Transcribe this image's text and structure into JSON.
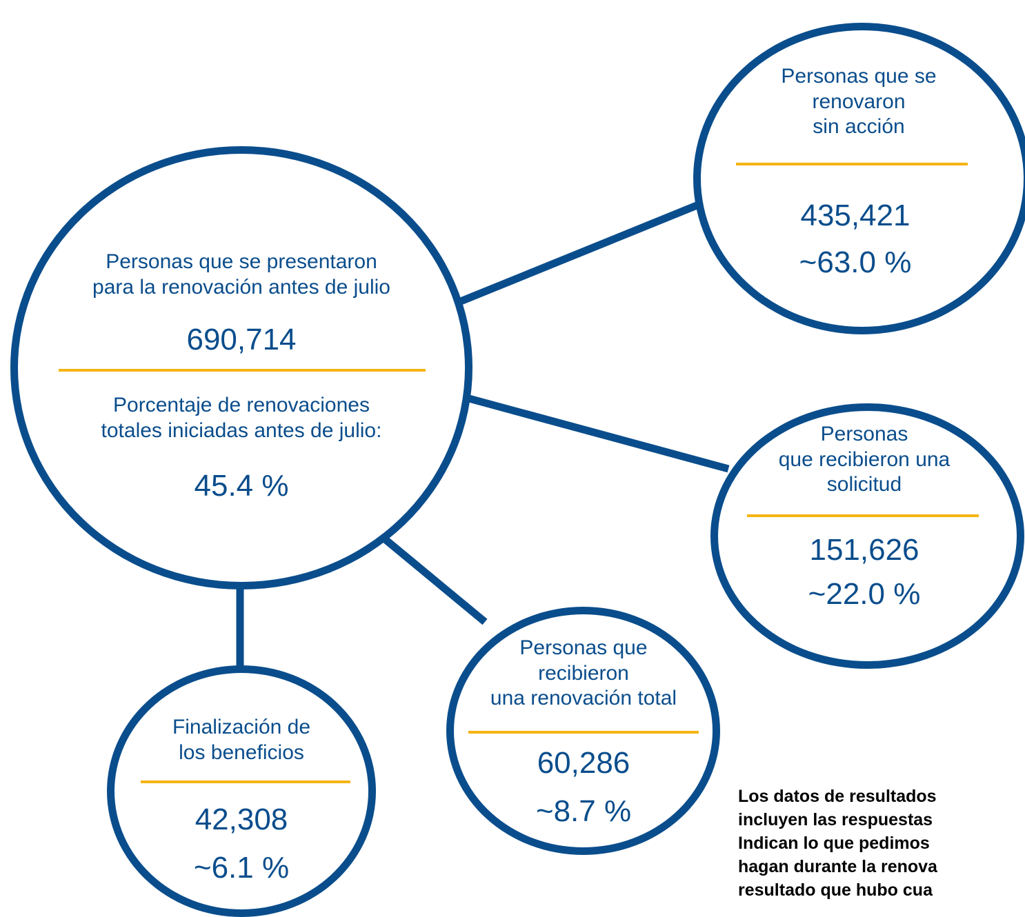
{
  "colors": {
    "circle_border": "#0a4d8c",
    "divider": "#f5b414",
    "text": "#0a4d8c",
    "note_text": "#000000"
  },
  "central": {
    "label_lines": [
      "Personas que se presentaron",
      "para la renovación antes de julio"
    ],
    "count": "690,714",
    "sublabel_lines": [
      "Porcentaje de renovaciones",
      "totales iniciadas antes de julio:"
    ],
    "percent": "45.4 %"
  },
  "sin_accion": {
    "label_lines": [
      "Personas que se",
      "renovaron",
      "sin acción"
    ],
    "count": "435,421",
    "percent": "~63.0 %"
  },
  "solicitud": {
    "label_lines": [
      "Personas",
      "que recibieron una",
      "solicitud"
    ],
    "count": "151,626",
    "percent": "~22.0 %"
  },
  "renovacion_total": {
    "label_lines": [
      "Personas que",
      "recibieron",
      "una renovación total"
    ],
    "count": "60,286",
    "percent": "~8.7 %"
  },
  "finalizacion": {
    "label_lines": [
      "Finalización de",
      "los beneficios"
    ],
    "count": "42,308",
    "percent": "~6.1 %"
  },
  "note_lines": [
    "Los datos de resultados",
    "incluyen las respuestas",
    "Indican lo que pedimos",
    "hagan durante la renova",
    "resultado que hubo cua"
  ]
}
